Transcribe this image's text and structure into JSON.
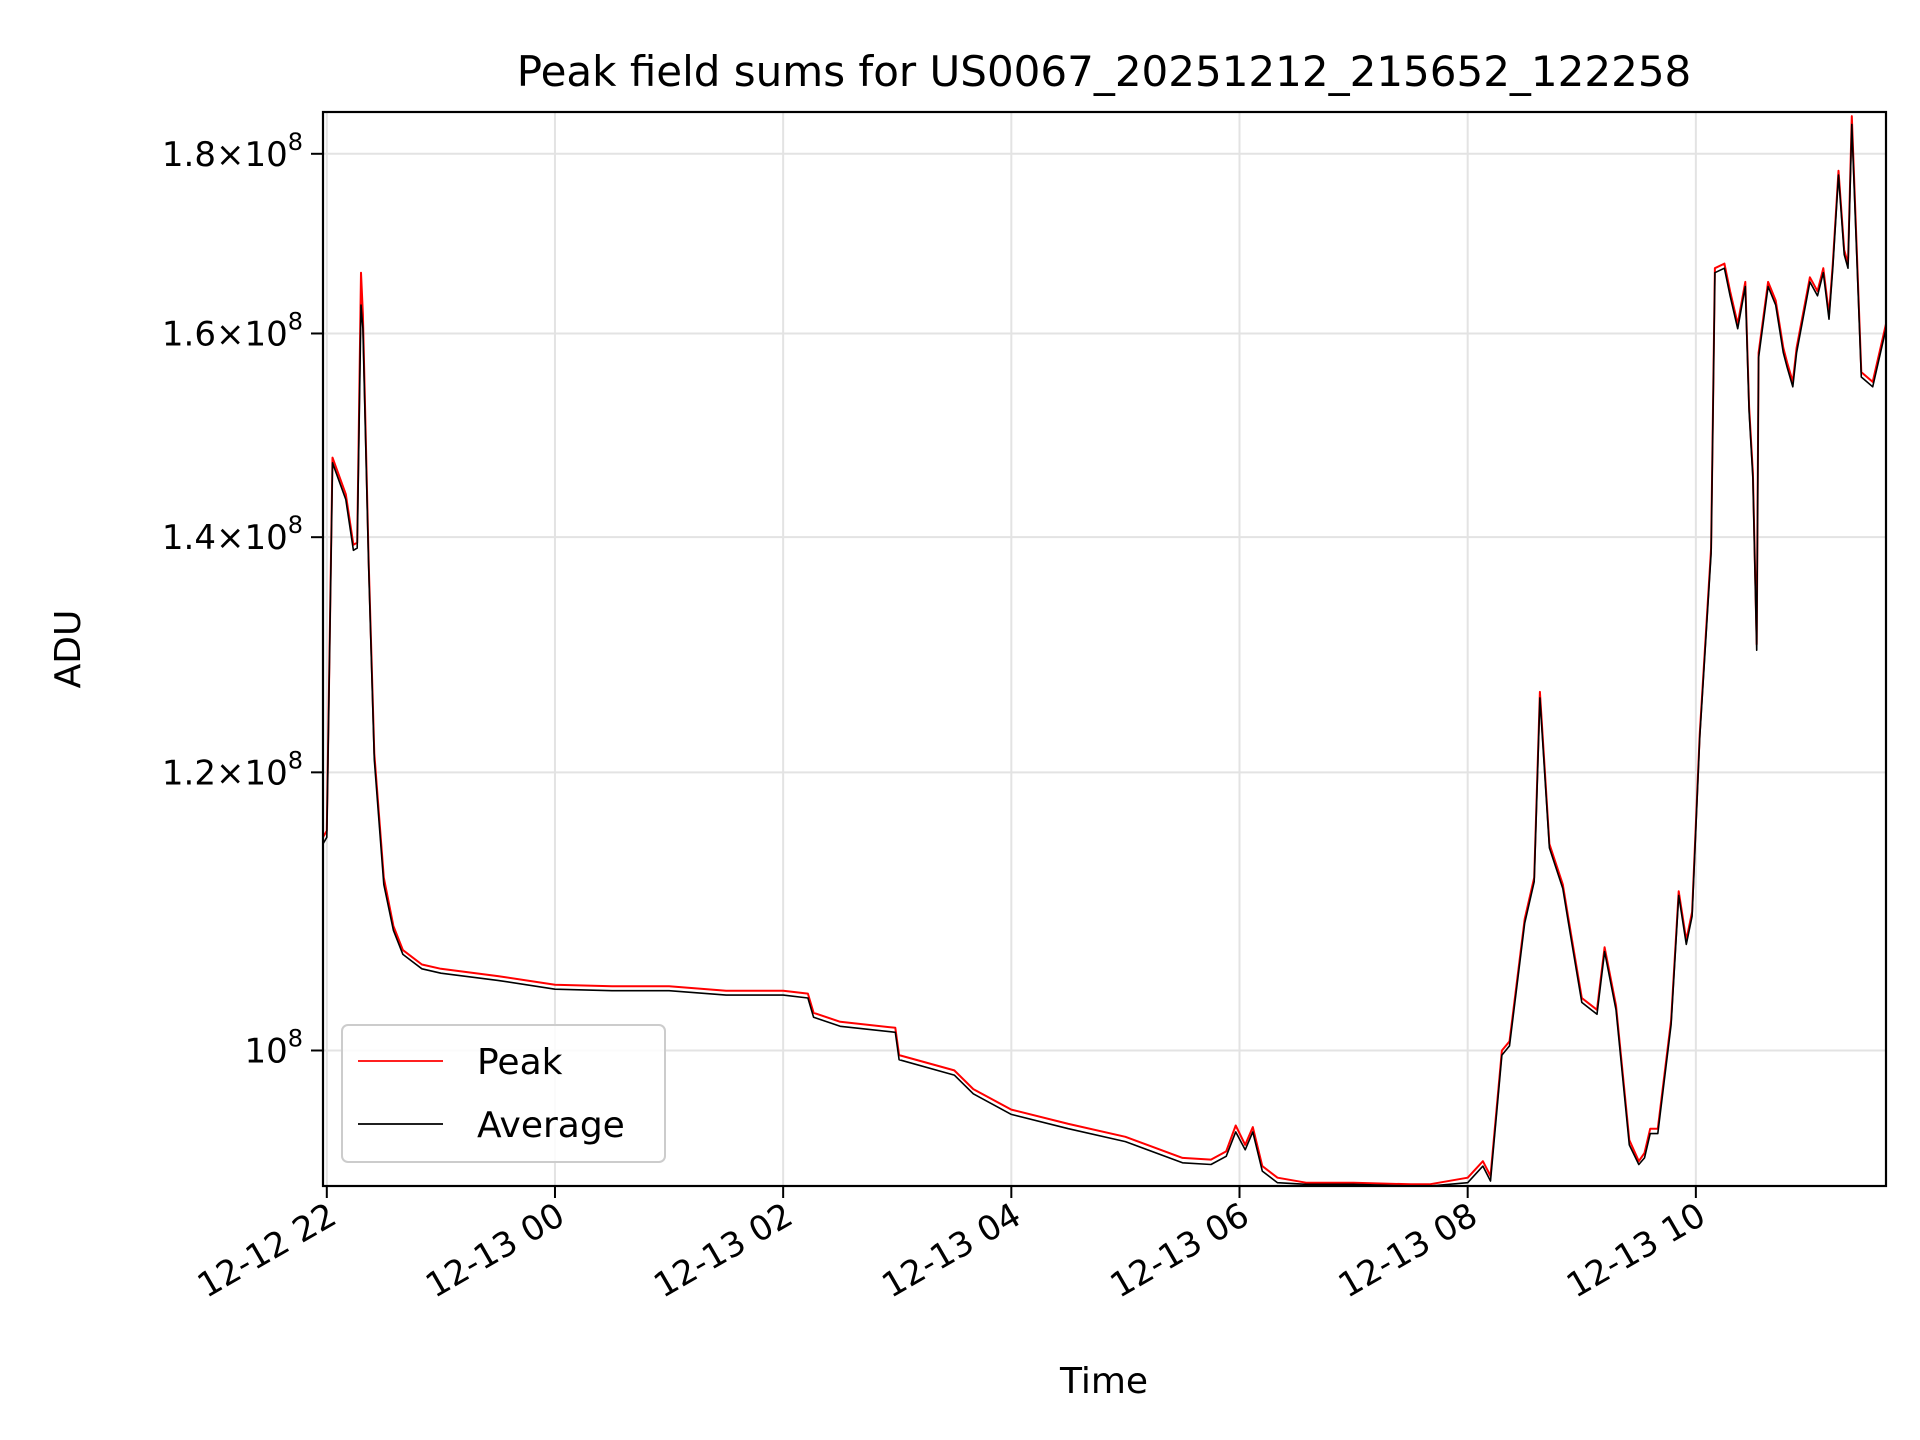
{
  "chart_data": {
    "type": "line",
    "title": "Peak field sums for US0067_20251212_215652_122258",
    "xlabel": "Time",
    "ylabel": "ADU",
    "yscale": "log",
    "ylim": [
      91500000,
      185000000
    ],
    "xlim": [
      "2025-12-12 21:58",
      "2025-12-13 11:40"
    ],
    "grid": true,
    "legend": {
      "placement": "lower-left",
      "entries": [
        "Peak",
        "Average"
      ]
    },
    "x_ticks": [
      {
        "time": "2025-12-12 22:00",
        "label": "12-12 22"
      },
      {
        "time": "2025-12-13 00:00",
        "label": "12-13 00"
      },
      {
        "time": "2025-12-13 02:00",
        "label": "12-13 02"
      },
      {
        "time": "2025-12-13 04:00",
        "label": "12-13 04"
      },
      {
        "time": "2025-12-13 06:00",
        "label": "12-13 06"
      },
      {
        "time": "2025-12-13 08:00",
        "label": "12-13 08"
      },
      {
        "time": "2025-12-13 10:00",
        "label": "12-13 10"
      }
    ],
    "y_ticks": [
      {
        "value": 100000000,
        "mantissa": "",
        "exponent": "8"
      },
      {
        "value": 120000000,
        "mantissa": "1.2",
        "exponent": "8"
      },
      {
        "value": 140000000,
        "mantissa": "1.4",
        "exponent": "8"
      },
      {
        "value": 160000000,
        "mantissa": "1.6",
        "exponent": "8"
      },
      {
        "value": 180000000,
        "mantissa": "1.8",
        "exponent": "8"
      }
    ],
    "x": [
      "2025-12-12 21:58",
      "2025-12-12 22:00",
      "2025-12-12 22:03",
      "2025-12-12 22:10",
      "2025-12-12 22:14",
      "2025-12-12 22:16",
      "2025-12-12 22:18",
      "2025-12-12 22:19",
      "2025-12-12 22:22",
      "2025-12-12 22:25",
      "2025-12-12 22:30",
      "2025-12-12 22:35",
      "2025-12-12 22:40",
      "2025-12-12 22:45",
      "2025-12-12 22:50",
      "2025-12-12 23:00",
      "2025-12-12 23:30",
      "2025-12-13 00:00",
      "2025-12-13 00:30",
      "2025-12-13 01:00",
      "2025-12-13 01:30",
      "2025-12-13 02:00",
      "2025-12-13 02:13",
      "2025-12-13 02:16",
      "2025-12-13 02:30",
      "2025-12-13 02:59",
      "2025-12-13 03:01",
      "2025-12-13 03:30",
      "2025-12-13 03:40",
      "2025-12-13 04:00",
      "2025-12-13 04:30",
      "2025-12-13 05:00",
      "2025-12-13 05:30",
      "2025-12-13 05:45",
      "2025-12-13 05:53",
      "2025-12-13 05:58",
      "2025-12-13 06:03",
      "2025-12-13 06:07",
      "2025-12-13 06:12",
      "2025-12-13 06:20",
      "2025-12-13 06:35",
      "2025-12-13 07:00",
      "2025-12-13 07:30",
      "2025-12-13 07:40",
      "2025-12-13 08:00",
      "2025-12-13 08:08",
      "2025-12-13 08:12",
      "2025-12-13 08:18",
      "2025-12-13 08:22",
      "2025-12-13 08:30",
      "2025-12-13 08:35",
      "2025-12-13 08:38",
      "2025-12-13 08:43",
      "2025-12-13 08:50",
      "2025-12-13 08:53",
      "2025-12-13 09:00",
      "2025-12-13 09:03",
      "2025-12-13 09:08",
      "2025-12-13 09:12",
      "2025-12-13 09:18",
      "2025-12-13 09:25",
      "2025-12-13 09:30",
      "2025-12-13 09:33",
      "2025-12-13 09:36",
      "2025-12-13 09:40",
      "2025-12-13 09:47",
      "2025-12-13 09:51",
      "2025-12-13 09:55",
      "2025-12-13 09:58",
      "2025-12-13 10:02",
      "2025-12-13 10:08",
      "2025-12-13 10:10",
      "2025-12-13 10:15",
      "2025-12-13 10:18",
      "2025-12-13 10:22",
      "2025-12-13 10:26",
      "2025-12-13 10:28",
      "2025-12-13 10:30",
      "2025-12-13 10:32",
      "2025-12-13 10:33",
      "2025-12-13 10:38",
      "2025-12-13 10:42",
      "2025-12-13 10:46",
      "2025-12-13 10:48",
      "2025-12-13 10:51",
      "2025-12-13 10:53",
      "2025-12-13 11:00",
      "2025-12-13 11:04",
      "2025-12-13 11:07",
      "2025-12-13 11:10",
      "2025-12-13 11:12",
      "2025-12-13 11:15",
      "2025-12-13 11:18",
      "2025-12-13 11:20",
      "2025-12-13 11:22",
      "2025-12-13 11:27",
      "2025-12-13 11:33",
      "2025-12-13 11:40"
    ],
    "series": [
      {
        "name": "Peak",
        "color": "#ff0000",
        "values": [
          115000000,
          115500000,
          147500000,
          144000000,
          139300000,
          139500000,
          166500000,
          162000000,
          138000000,
          121500000,
          112000000,
          108500000,
          106800000,
          106300000,
          105800000,
          105500000,
          105000000,
          104400000,
          104300000,
          104300000,
          104000000,
          104000000,
          103800000,
          102500000,
          101900000,
          101500000,
          99700000,
          98700000,
          97500000,
          96200000,
          95300000,
          94500000,
          93200000,
          93100000,
          93600000,
          95200000,
          94000000,
          95100000,
          92700000,
          92000000,
          91700000,
          91700000,
          91600000,
          91600000,
          92000000,
          93000000,
          92100000,
          100000000,
          100600000,
          109000000,
          112000000,
          126500000,
          114500000,
          111500000,
          109000000,
          103500000,
          103200000,
          102700000,
          107000000,
          103000000,
          94300000,
          93000000,
          93500000,
          95000000,
          95000000,
          102000000,
          111000000,
          107500000,
          109500000,
          123000000,
          139000000,
          167000000,
          167500000,
          164500000,
          161000000,
          165500000,
          152500000,
          146000000,
          130500000,
          158000000,
          165500000,
          163500000,
          158500000,
          157000000,
          155000000,
          158500000,
          166000000,
          164500000,
          167000000,
          162000000,
          167500000,
          178000000,
          169000000,
          167500000,
          184500000,
          156000000,
          155000000,
          161000000
        ]
      },
      {
        "name": "Average",
        "color": "#000000",
        "values": [
          114500000,
          115000000,
          147000000,
          143500000,
          138800000,
          139000000,
          163000000,
          160500000,
          137500000,
          121000000,
          111500000,
          108200000,
          106500000,
          106000000,
          105500000,
          105200000,
          104700000,
          104100000,
          104000000,
          104000000,
          103700000,
          103700000,
          103500000,
          102200000,
          101600000,
          101200000,
          99400000,
          98400000,
          97200000,
          95900000,
          95000000,
          94200000,
          92900000,
          92800000,
          93300000,
          94800000,
          93700000,
          94800000,
          92400000,
          91700000,
          91600000,
          91600000,
          91500000,
          91500000,
          91700000,
          92700000,
          91800000,
          99700000,
          100300000,
          108700000,
          111700000,
          126000000,
          114200000,
          111200000,
          108700000,
          103200000,
          102900000,
          102400000,
          106700000,
          102700000,
          94000000,
          92800000,
          93200000,
          94700000,
          94700000,
          101700000,
          110700000,
          107200000,
          109200000,
          122700000,
          138500000,
          166500000,
          167000000,
          164000000,
          160500000,
          165000000,
          152000000,
          145500000,
          130000000,
          157500000,
          165000000,
          163000000,
          158000000,
          156500000,
          154500000,
          158000000,
          165500000,
          164000000,
          166500000,
          161500000,
          167000000,
          177500000,
          168500000,
          167000000,
          183500000,
          155500000,
          154500000,
          160500000
        ]
      }
    ]
  }
}
